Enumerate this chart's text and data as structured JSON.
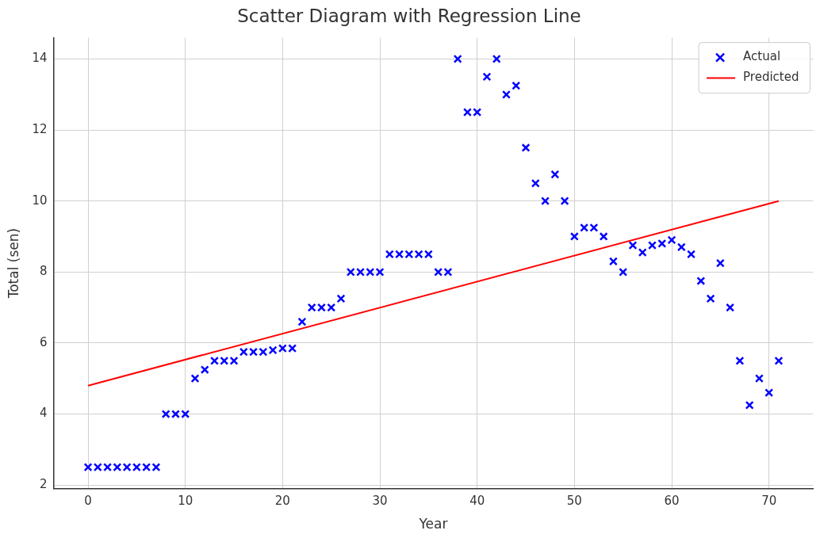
{
  "chart_data": {
    "type": "scatter",
    "title": "Scatter Diagram with Regression Line",
    "xlabel": "Year",
    "ylabel": "Total (sen)",
    "xlim": [
      -3.55,
      74.55
    ],
    "xticks": [
      0,
      10,
      20,
      30,
      40,
      50,
      60,
      70
    ],
    "ylim": [
      1.9,
      14.6
    ],
    "yticks": [
      2,
      4,
      6,
      8,
      10,
      12,
      14
    ],
    "grid": true,
    "legend": "top right",
    "marker": "cross",
    "series": [
      {
        "name": "Actual",
        "type": "scatter",
        "color": "#0000ff",
        "x": [
          0,
          1,
          2,
          3,
          4,
          5,
          6,
          7,
          8,
          9,
          10,
          11,
          12,
          13,
          14,
          15,
          16,
          17,
          18,
          19,
          20,
          21,
          22,
          23,
          24,
          25,
          26,
          27,
          28,
          29,
          30,
          31,
          32,
          33,
          34,
          35,
          36,
          37,
          38,
          39,
          40,
          41,
          42,
          43,
          44,
          45,
          46,
          47,
          48,
          49,
          50,
          51,
          52,
          53,
          54,
          55,
          56,
          57,
          58,
          59,
          60,
          61,
          62,
          63,
          64,
          65,
          66,
          67,
          68,
          69,
          70,
          71
        ],
        "values": [
          2.5,
          2.5,
          2.5,
          2.5,
          2.5,
          2.5,
          2.5,
          2.5,
          4,
          4,
          4,
          5,
          5.25,
          5.5,
          5.5,
          5.5,
          5.75,
          5.75,
          5.75,
          5.8,
          5.85,
          5.85,
          6.6,
          7,
          7,
          7,
          7.25,
          8,
          8,
          8,
          8,
          8.5,
          8.5,
          8.5,
          8.5,
          8.5,
          8,
          8,
          14,
          12.5,
          12.5,
          13.5,
          14,
          13,
          13.25,
          11.5,
          10.5,
          10,
          10.75,
          10,
          9,
          9.25,
          9.25,
          9,
          8.3,
          8,
          8.75,
          8.55,
          8.75,
          8.8,
          8.9,
          8.7,
          8.5,
          7.75,
          7.25,
          8.25,
          7,
          5.5,
          4.25,
          5,
          4.6,
          5.5
        ]
      },
      {
        "name": "Predicted",
        "type": "line",
        "color": "#ff0000",
        "marker": "none",
        "line_style": "solid",
        "x": [
          0,
          71
        ],
        "values": [
          4.8,
          10.0
        ]
      }
    ]
  }
}
